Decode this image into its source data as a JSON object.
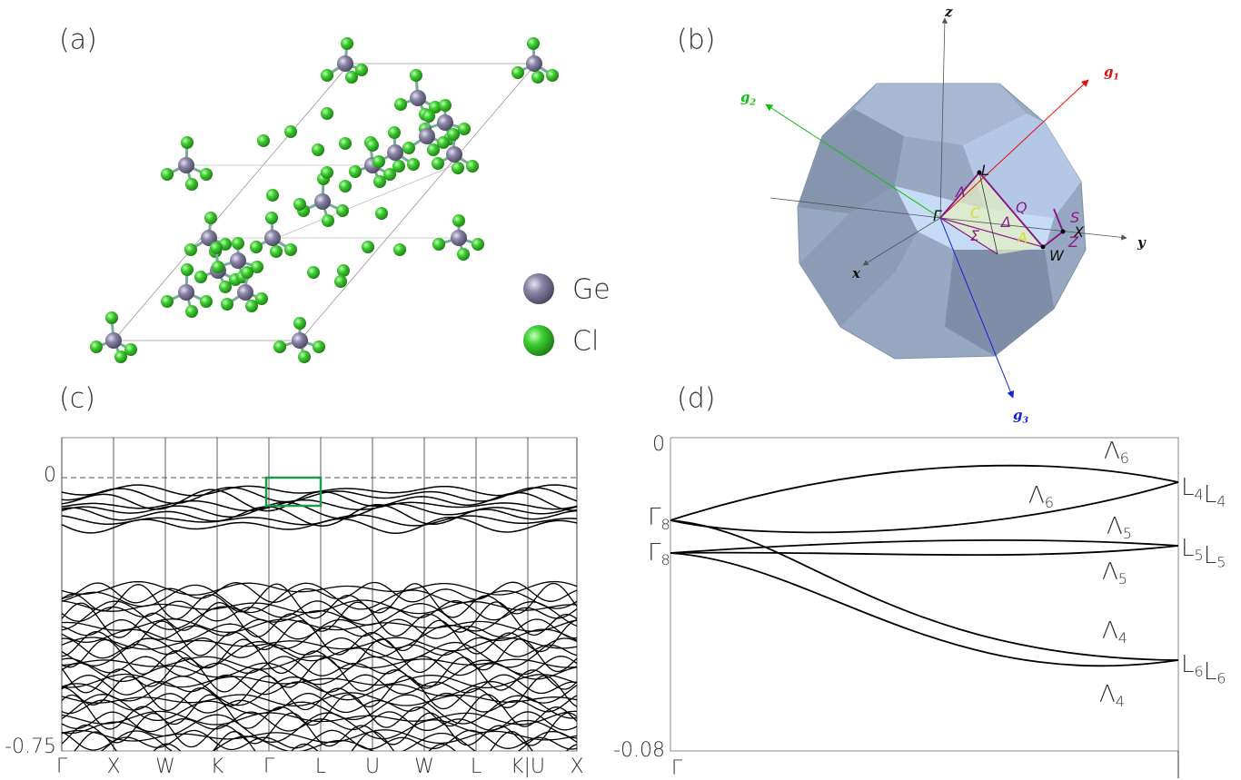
{
  "panels": [
    "(a)",
    "(b)",
    "(c)",
    "(d)"
  ],
  "legend": [
    "Ge",
    "Cl"
  ],
  "bz_labels": [
    [
      {
        "base": "z"
      }
    ],
    [
      {
        "base": "y"
      }
    ],
    [
      {
        "base": "x"
      }
    ],
    [
      {
        "base": "g",
        "sub": "1"
      }
    ],
    [
      {
        "base": "g",
        "sub": "2"
      }
    ],
    [
      {
        "base": "g",
        "sub": "3"
      }
    ],
    [
      {
        "base": "Γ"
      }
    ],
    [
      {
        "base": "L"
      }
    ],
    [
      {
        "base": "X"
      }
    ],
    [
      {
        "base": "W"
      }
    ],
    [
      {
        "base": "Λ"
      }
    ],
    [
      {
        "base": "Σ"
      }
    ],
    [
      {
        "base": "Δ"
      }
    ],
    [
      {
        "base": "Q"
      }
    ],
    [
      {
        "base": "S"
      }
    ],
    [
      {
        "base": "Z"
      }
    ],
    [
      {
        "base": "C"
      }
    ],
    [
      {
        "base": "A"
      }
    ]
  ],
  "band_plot": {
    "yticks": [
      "0",
      "-0.75"
    ],
    "kpoints": [
      "Γ",
      "X",
      "W",
      "K",
      "Γ",
      "L",
      "U",
      "W",
      "L",
      "K|U",
      "X"
    ]
  },
  "zoom_plot": {
    "yticks": [
      "0",
      "-0.08"
    ],
    "kpoints": [
      "Γ"
    ],
    "labels": [
      [
        {
          "base": "Γ",
          "sub": "8"
        }
      ],
      [
        {
          "base": "Γ",
          "sub": "8"
        }
      ],
      [
        {
          "base": "Λ",
          "sub": "6"
        }
      ],
      [
        {
          "base": "Λ",
          "sub": "6"
        }
      ],
      [
        {
          "base": "Λ",
          "sub": "5"
        }
      ],
      [
        {
          "base": "Λ",
          "sub": "5"
        }
      ],
      [
        {
          "base": "Λ",
          "sub": "4"
        }
      ],
      [
        {
          "base": "Λ",
          "sub": "4"
        }
      ],
      [
        {
          "base": "L",
          "sub": "4"
        },
        {
          "base": "L",
          "sub": "4"
        }
      ],
      [
        {
          "base": "L",
          "sub": "5"
        },
        {
          "base": "L",
          "sub": "5"
        }
      ],
      [
        {
          "base": "L",
          "sub": "6"
        },
        {
          "base": "L",
          "sub": "6"
        }
      ]
    ]
  }
}
